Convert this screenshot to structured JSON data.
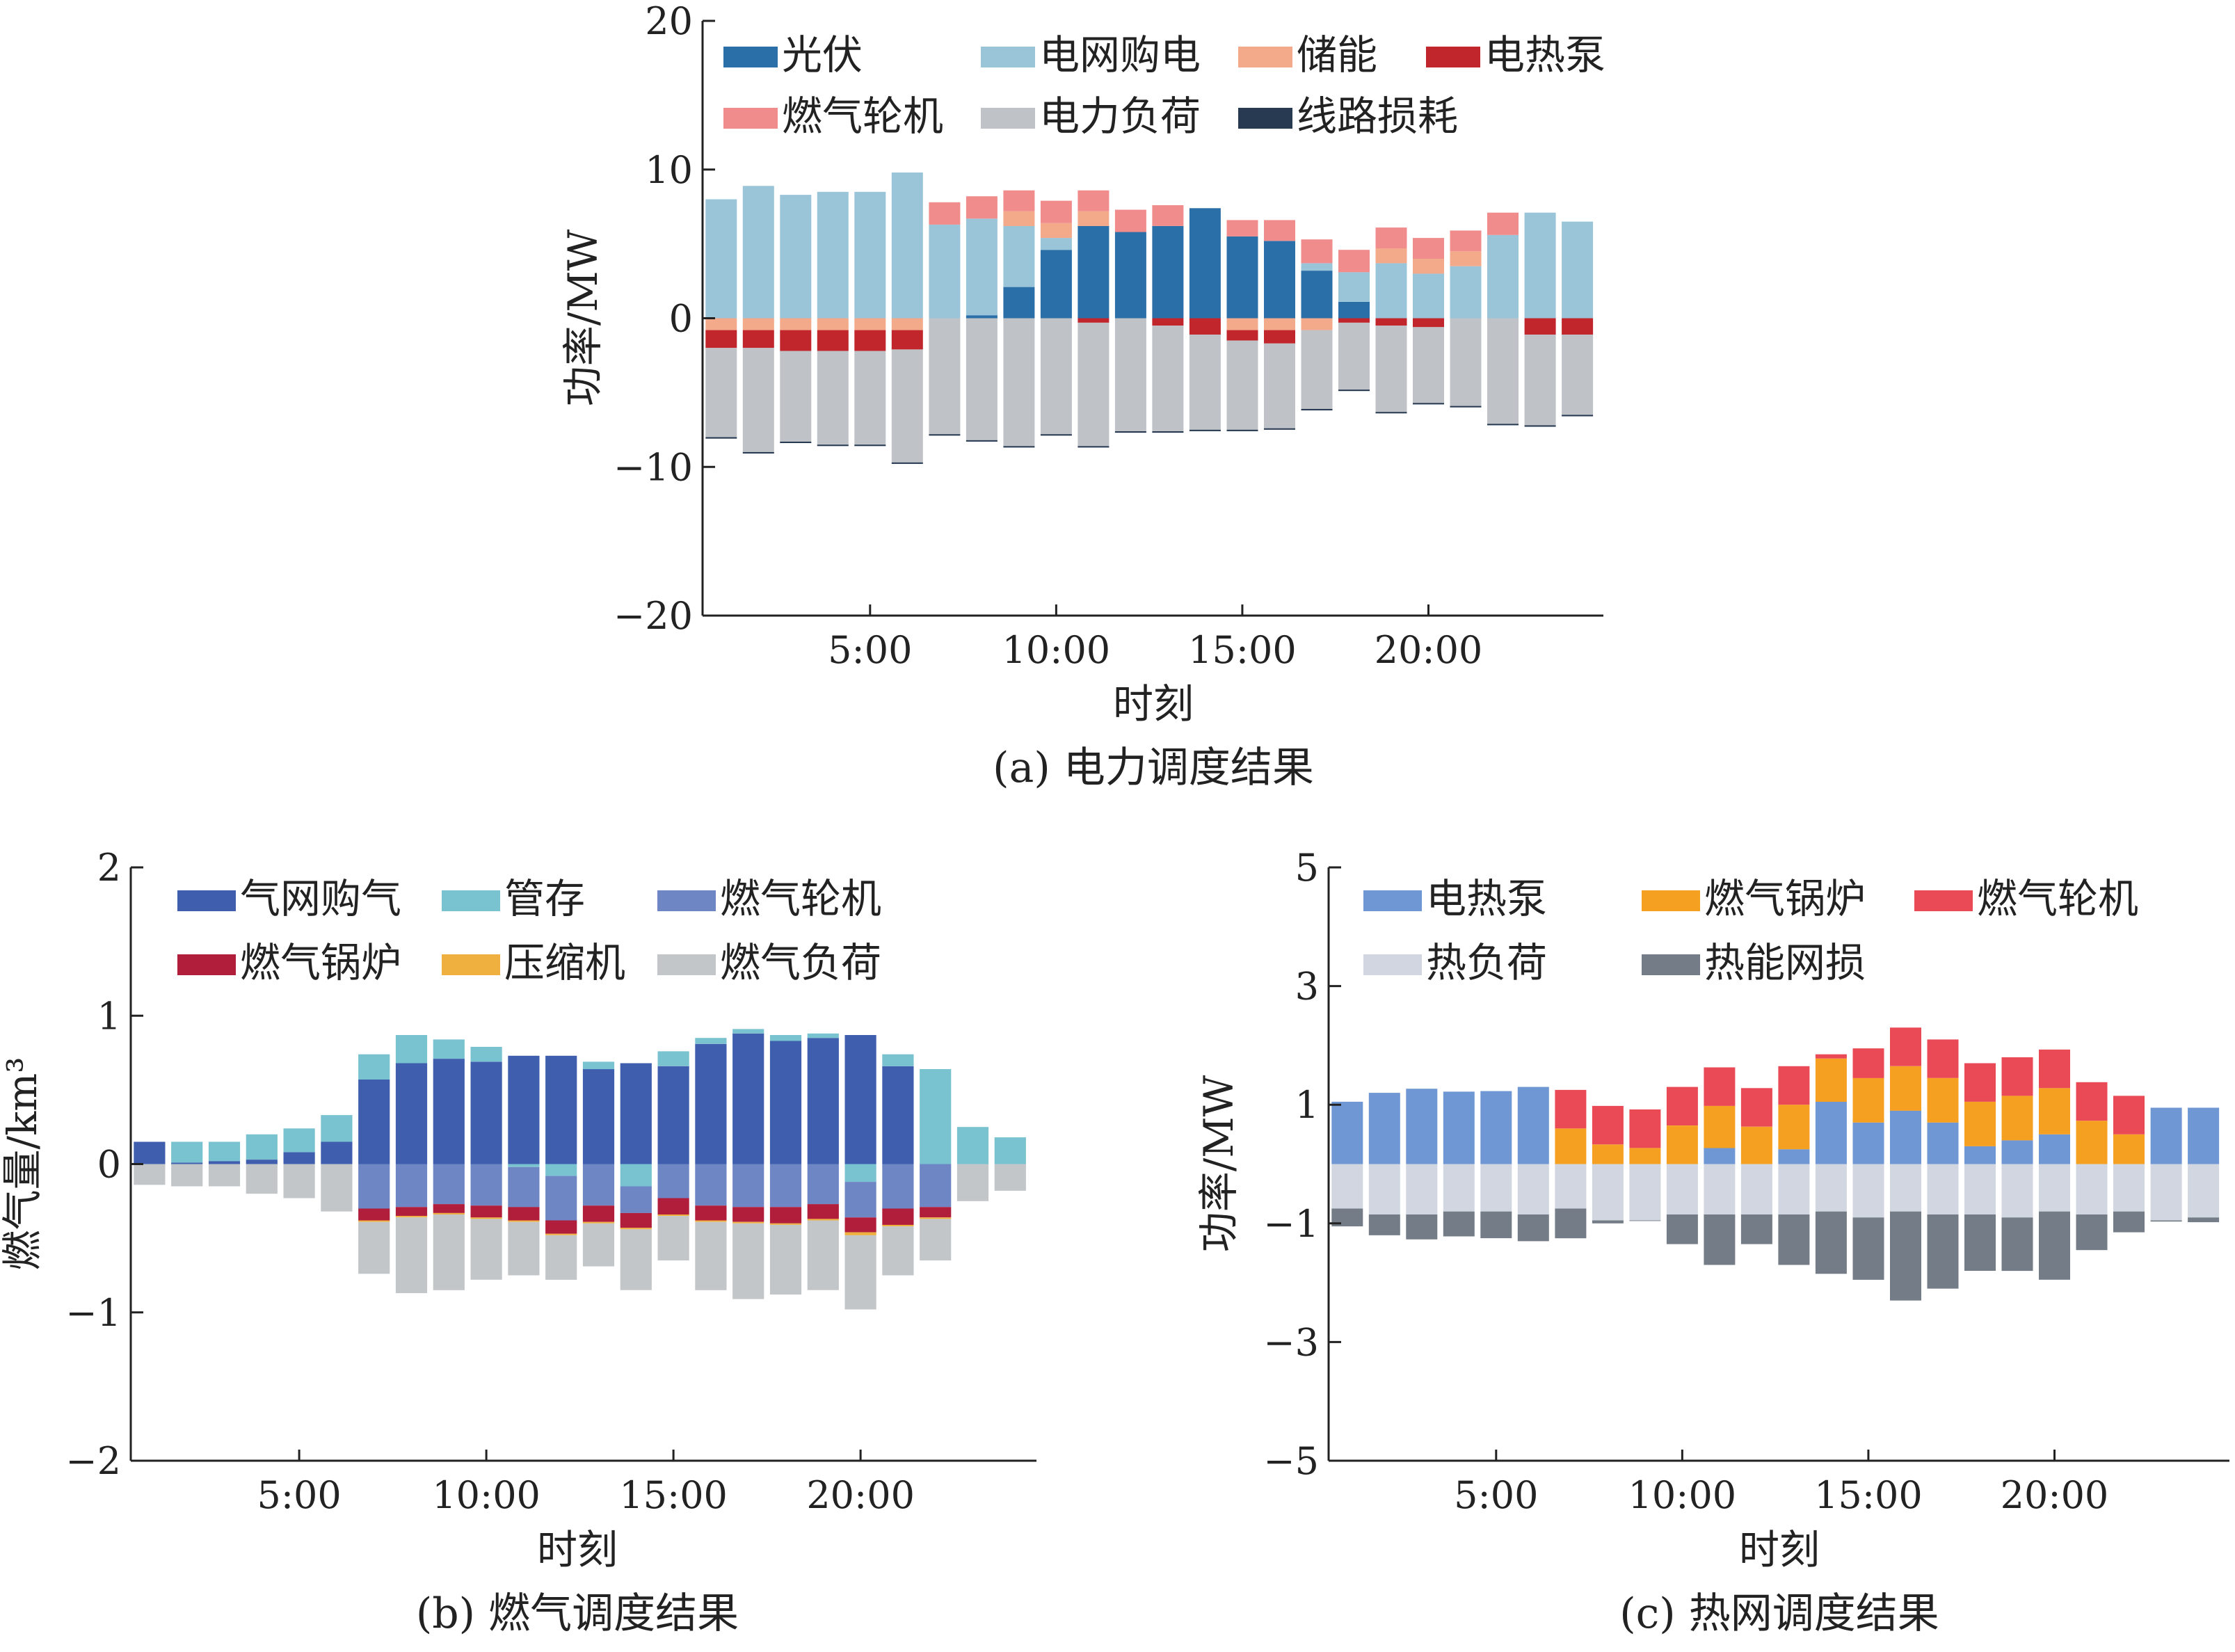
{
  "chart_data": [
    {
      "id": "a",
      "type": "bar",
      "stacked": true,
      "caption": "(a)  电力调度结果",
      "xlabel": "时刻",
      "ylabel": "功率/MW",
      "ylim": [
        -20,
        20
      ],
      "yticks": [
        "20",
        "10",
        "0",
        "−10",
        "−20"
      ],
      "ytick_values": [
        20,
        10,
        0,
        -10,
        -20
      ],
      "xticks": [
        "5:00",
        "10:00",
        "15:00",
        "20:00"
      ],
      "xtick_values": [
        5,
        10,
        15,
        20
      ],
      "x": [
        1,
        2,
        3,
        4,
        5,
        6,
        7,
        8,
        9,
        10,
        11,
        12,
        13,
        14,
        15,
        16,
        17,
        18,
        19,
        20,
        21,
        22,
        23,
        24
      ],
      "legend_position": "top",
      "series": [
        {
          "name": "光伏",
          "color": "#2b6fa8",
          "values": [
            0,
            0,
            0,
            0,
            0,
            0,
            0,
            0.2,
            2.1,
            4.6,
            6.2,
            5.8,
            6.2,
            7.4,
            5.5,
            5.2,
            3.2,
            1.1,
            0,
            0,
            0,
            0,
            0,
            0
          ]
        },
        {
          "name": "电网购电",
          "color": "#9ac5d8",
          "values": [
            8.0,
            8.9,
            8.3,
            8.5,
            8.5,
            9.8,
            6.3,
            6.5,
            4.1,
            0.8,
            0,
            0,
            0,
            0,
            0,
            0,
            0.5,
            2.0,
            3.7,
            3.0,
            3.5,
            5.6,
            7.1,
            6.5
          ]
        },
        {
          "name": "储能",
          "color": "#f2aa8a",
          "values": [
            -0.8,
            -0.8,
            -0.8,
            -0.8,
            -0.8,
            -0.8,
            0,
            0,
            1.0,
            1.0,
            1.0,
            0,
            0,
            0,
            -0.8,
            -0.8,
            -0.8,
            0,
            1.0,
            1.0,
            1.0,
            0,
            0,
            0
          ]
        },
        {
          "name": "电热泵",
          "color": "#c0262b",
          "values": [
            -1.2,
            -1.2,
            -1.4,
            -1.4,
            -1.4,
            -1.3,
            0,
            0,
            0,
            0,
            -0.3,
            0,
            -0.5,
            -1.1,
            -0.7,
            -0.9,
            0,
            -0.3,
            -0.5,
            -0.6,
            0,
            0,
            -1.1,
            -1.1
          ]
        },
        {
          "name": "燃气轮机",
          "color": "#f08c8c",
          "values": [
            0,
            0,
            0,
            0,
            0,
            0,
            1.5,
            1.5,
            1.4,
            1.5,
            1.4,
            1.5,
            1.4,
            0,
            1.1,
            1.4,
            1.6,
            1.5,
            1.4,
            1.4,
            1.4,
            1.5,
            0,
            0
          ]
        },
        {
          "name": "电力负荷",
          "color": "#bfc3c7",
          "values": [
            -6.0,
            -7.0,
            -6.1,
            -6.3,
            -6.3,
            -7.6,
            -7.8,
            -8.2,
            -8.6,
            -7.8,
            -8.3,
            -7.6,
            -7.1,
            -6.4,
            -6.0,
            -5.7,
            -5.3,
            -4.5,
            -5.8,
            -5.1,
            -5.9,
            -7.1,
            -6.1,
            -5.4
          ]
        },
        {
          "name": "线路损耗",
          "color": "#273a52",
          "values": [
            -0.1,
            -0.1,
            -0.1,
            -0.1,
            -0.1,
            -0.1,
            -0.1,
            -0.1,
            -0.1,
            -0.1,
            -0.1,
            -0.1,
            -0.1,
            -0.1,
            -0.1,
            -0.1,
            -0.1,
            -0.1,
            -0.1,
            -0.1,
            -0.1,
            -0.1,
            -0.1,
            -0.1
          ]
        }
      ]
    },
    {
      "id": "b",
      "type": "bar",
      "stacked": true,
      "caption": "(b)  燃气调度结果",
      "xlabel": "时刻",
      "ylabel": "燃气量/km³",
      "ylim": [
        -2,
        2
      ],
      "yticks": [
        "2",
        "1",
        "0",
        "−1",
        "−2"
      ],
      "ytick_values": [
        2,
        1,
        0,
        -1,
        -2
      ],
      "xticks": [
        "5:00",
        "10:00",
        "15:00",
        "20:00"
      ],
      "xtick_values": [
        5,
        10,
        15,
        20
      ],
      "x": [
        1,
        2,
        3,
        4,
        5,
        6,
        7,
        8,
        9,
        10,
        11,
        12,
        13,
        14,
        15,
        16,
        17,
        18,
        19,
        20,
        21,
        22,
        23,
        24
      ],
      "legend_position": "top",
      "series": [
        {
          "name": "气网购气",
          "color": "#3f5fae",
          "values": [
            0.15,
            0.01,
            0.02,
            0.03,
            0.08,
            0.15,
            0.57,
            0.68,
            0.71,
            0.69,
            0.73,
            0.73,
            0.64,
            0.68,
            0.66,
            0.81,
            0.88,
            0.83,
            0.85,
            0.87,
            0.66,
            0,
            0,
            0
          ]
        },
        {
          "name": "管存",
          "color": "#79c2d0",
          "values": [
            0,
            0.14,
            0.13,
            0.17,
            0.16,
            0.18,
            0.17,
            0.19,
            0.13,
            0.1,
            -0.02,
            -0.08,
            0.05,
            -0.15,
            0.1,
            0.04,
            0.03,
            0.04,
            0.03,
            -0.12,
            0.08,
            0.64,
            0.25,
            0.18
          ]
        },
        {
          "name": "燃气轮机",
          "color": "#6e87c4",
          "values": [
            0,
            0,
            0,
            0,
            0,
            0,
            -0.3,
            -0.29,
            -0.27,
            -0.28,
            -0.27,
            -0.3,
            -0.28,
            -0.18,
            -0.23,
            -0.28,
            -0.29,
            -0.29,
            -0.27,
            -0.24,
            -0.3,
            -0.29,
            0,
            0
          ]
        },
        {
          "name": "燃气锅炉",
          "color": "#b01e3c",
          "values": [
            0,
            0,
            0,
            0,
            0,
            0,
            -0.08,
            -0.06,
            -0.06,
            -0.08,
            -0.09,
            -0.09,
            -0.11,
            -0.1,
            -0.11,
            -0.1,
            -0.1,
            -0.11,
            -0.1,
            -0.1,
            -0.11,
            -0.07,
            0,
            0
          ]
        },
        {
          "name": "压缩机",
          "color": "#f0b040",
          "values": [
            0,
            0,
            0,
            0,
            0,
            0,
            -0.01,
            -0.01,
            -0.01,
            -0.01,
            -0.01,
            -0.01,
            -0.01,
            -0.01,
            -0.01,
            -0.01,
            -0.01,
            -0.01,
            -0.01,
            -0.02,
            -0.01,
            -0.01,
            0,
            0
          ]
        },
        {
          "name": "燃气负荷",
          "color": "#c3c6c9",
          "values": [
            -0.14,
            -0.15,
            -0.15,
            -0.2,
            -0.23,
            -0.32,
            -0.35,
            -0.51,
            -0.51,
            -0.41,
            -0.36,
            -0.3,
            -0.29,
            -0.41,
            -0.3,
            -0.46,
            -0.51,
            -0.47,
            -0.47,
            -0.5,
            -0.33,
            -0.28,
            -0.25,
            -0.18
          ]
        }
      ]
    },
    {
      "id": "c",
      "type": "bar",
      "stacked": true,
      "caption": "(c)  热网调度结果",
      "xlabel": "时刻",
      "ylabel": "功率/MW",
      "ylim": [
        -5,
        5
      ],
      "yticks": [
        "5",
        "3",
        "1",
        "−1",
        "−3",
        "−5"
      ],
      "ytick_values": [
        5,
        3,
        1,
        -1,
        -3,
        -5
      ],
      "xticks": [
        "5:00",
        "10:00",
        "15:00",
        "20:00"
      ],
      "xtick_values": [
        5,
        10,
        15,
        20
      ],
      "x": [
        1,
        2,
        3,
        4,
        5,
        6,
        7,
        8,
        9,
        10,
        11,
        12,
        13,
        14,
        15,
        16,
        17,
        18,
        19,
        20,
        21,
        22,
        23,
        24
      ],
      "legend_position": "top",
      "series": [
        {
          "name": "电热泵",
          "color": "#6f97d3",
          "values": [
            1.05,
            1.2,
            1.27,
            1.22,
            1.23,
            1.3,
            0,
            0,
            0,
            0,
            0.27,
            0,
            0.25,
            1.05,
            0.7,
            0.9,
            0.7,
            0.3,
            0.4,
            0.5,
            0,
            0,
            0.95,
            0.95
          ]
        },
        {
          "name": "燃气锅炉",
          "color": "#f5a021",
          "values": [
            0,
            0,
            0,
            0,
            0,
            0,
            0.6,
            0.33,
            0.27,
            0.65,
            0.71,
            0.63,
            0.75,
            0.73,
            0.75,
            0.75,
            0.75,
            0.75,
            0.75,
            0.78,
            0.73,
            0.5,
            0,
            0
          ]
        },
        {
          "name": "燃气轮机",
          "color": "#ea4a55",
          "values": [
            0,
            0,
            0,
            0,
            0,
            0,
            0.65,
            0.65,
            0.65,
            0.65,
            0.65,
            0.65,
            0.65,
            0.07,
            0.5,
            0.65,
            0.65,
            0.65,
            0.65,
            0.65,
            0.65,
            0.65,
            0,
            0
          ]
        },
        {
          "name": "热负荷",
          "color": "#d1d6e0",
          "values": [
            -0.75,
            -0.85,
            -0.85,
            -0.8,
            -0.8,
            -0.85,
            -0.75,
            -0.95,
            -0.95,
            -0.85,
            -0.85,
            -0.85,
            -0.85,
            -0.8,
            -0.9,
            -0.8,
            -0.85,
            -0.85,
            -0.9,
            -0.8,
            -0.85,
            -0.8,
            -0.95,
            -0.9
          ]
        },
        {
          "name": "热能网损",
          "color": "#747d87",
          "values": [
            -0.3,
            -0.35,
            -0.42,
            -0.42,
            -0.45,
            -0.45,
            -0.5,
            -0.05,
            -0.01,
            -0.5,
            -0.85,
            -0.5,
            -0.85,
            -1.05,
            -1.05,
            -1.5,
            -1.25,
            -0.95,
            -0.9,
            -1.15,
            -0.6,
            -0.35,
            -0.02,
            -0.08
          ]
        }
      ]
    }
  ]
}
